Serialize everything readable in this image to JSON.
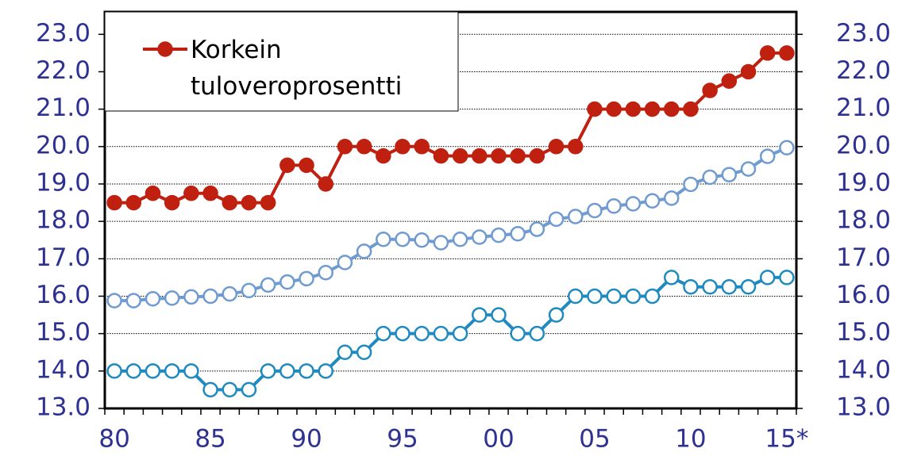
{
  "chart_data": {
    "type": "line",
    "categories": [
      "80",
      null,
      null,
      null,
      null,
      "85",
      null,
      null,
      null,
      null,
      "90",
      null,
      null,
      null,
      null,
      "95",
      null,
      null,
      null,
      null,
      "00",
      null,
      null,
      null,
      null,
      "05",
      null,
      null,
      null,
      null,
      "10",
      null,
      null,
      null,
      null,
      "15*"
    ],
    "series": [
      {
        "name": "Korkein tuloveroprosentti",
        "color": "#c0200f",
        "marker_fill": "#c0200f",
        "values": [
          18.5,
          18.5,
          18.75,
          18.5,
          18.75,
          18.75,
          18.5,
          18.5,
          18.5,
          19.5,
          19.5,
          19.0,
          20.0,
          20.0,
          19.75,
          20.0,
          20.0,
          19.75,
          19.75,
          19.75,
          19.75,
          19.75,
          19.75,
          20.0,
          20.0,
          21.0,
          21.0,
          21.0,
          21.0,
          21.0,
          21.0,
          21.5,
          21.75,
          22.0,
          22.5,
          22.5
        ]
      },
      {
        "color": "#6f9bd1",
        "marker_fill": "#ffffff",
        "values": [
          15.88,
          15.88,
          15.93,
          15.95,
          15.98,
          16.0,
          16.06,
          16.15,
          16.3,
          16.38,
          16.47,
          16.63,
          16.9,
          17.2,
          17.52,
          17.52,
          17.5,
          17.43,
          17.52,
          17.58,
          17.63,
          17.67,
          17.79,
          18.06,
          18.13,
          18.29,
          18.41,
          18.47,
          18.55,
          18.62,
          18.99,
          19.18,
          19.25,
          19.4,
          19.74,
          19.97
        ]
      },
      {
        "color": "#1f8ac0",
        "marker_fill": "#ffffff",
        "values": [
          14,
          14,
          14,
          14,
          14,
          13.5,
          13.5,
          13.5,
          14,
          14,
          14,
          14,
          14.5,
          14.5,
          15,
          15,
          15,
          15,
          15,
          15.5,
          15.5,
          15,
          15,
          15.5,
          16,
          16,
          16,
          16,
          16,
          16.5,
          16.25,
          16.25,
          16.25,
          16.25,
          16.5,
          16.5
        ]
      }
    ],
    "ylim": [
      13,
      23.6
    ],
    "yticks": [
      {
        "value": 13,
        "label": "13.0"
      },
      {
        "value": 14,
        "label": "14.0"
      },
      {
        "value": 15,
        "label": "15.0"
      },
      {
        "value": 16,
        "label": "16.0"
      },
      {
        "value": 17,
        "label": "17.0"
      },
      {
        "value": 18,
        "label": "18.0"
      },
      {
        "value": 19,
        "label": "19.0"
      },
      {
        "value": 20,
        "label": "20.0"
      },
      {
        "value": 21,
        "label": "21.0"
      },
      {
        "value": 22,
        "label": "22.0"
      },
      {
        "value": 23,
        "label": "23.0"
      }
    ],
    "y2lim": [
      13,
      23.6
    ],
    "y2ticks": [
      {
        "value": 13,
        "label": "13.0"
      },
      {
        "value": 14,
        "label": "14.0"
      },
      {
        "value": 15,
        "label": "15.0"
      },
      {
        "value": 16,
        "label": "16.0"
      },
      {
        "value": 17,
        "label": "17.0"
      },
      {
        "value": 18,
        "label": "18.0"
      },
      {
        "value": 19,
        "label": "19.0"
      },
      {
        "value": 20,
        "label": "20.0"
      },
      {
        "value": 21,
        "label": "21.0"
      },
      {
        "value": 22,
        "label": "22.0"
      },
      {
        "value": 23,
        "label": "23.0"
      }
    ],
    "grid": true,
    "legend": "upper left"
  }
}
